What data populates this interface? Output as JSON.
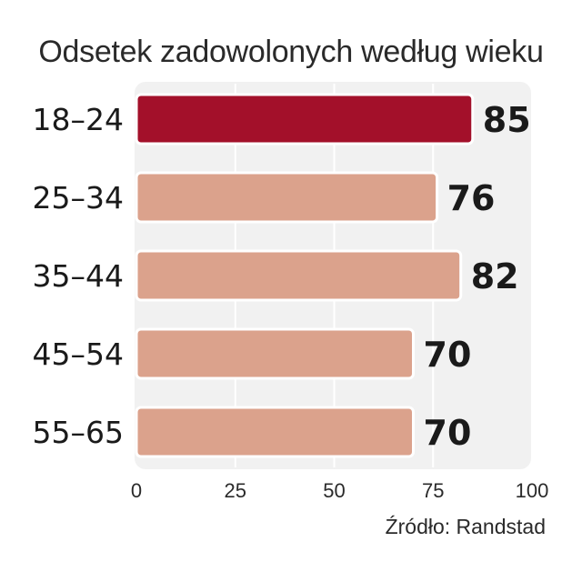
{
  "title": "Odsetek zadowolonych według wieku",
  "source": "Źródło: Randstad",
  "colors": {
    "highlight": "#a3102a",
    "bar": "#dba28c",
    "panel": "#f1f1f1",
    "grid": "#ffffff",
    "bar_outline": "#ffffff"
  },
  "chart_data": {
    "type": "bar",
    "orientation": "horizontal",
    "categories": [
      "18–24",
      "25–34",
      "35–44",
      "45–54",
      "55–65"
    ],
    "values": [
      85,
      76,
      82,
      70,
      70
    ],
    "highlight_index": 0,
    "xlim": [
      0,
      100
    ],
    "xticks": [
      0,
      25,
      50,
      75,
      100
    ],
    "grid": true,
    "title": "Odsetek zadowolonych według wieku"
  }
}
